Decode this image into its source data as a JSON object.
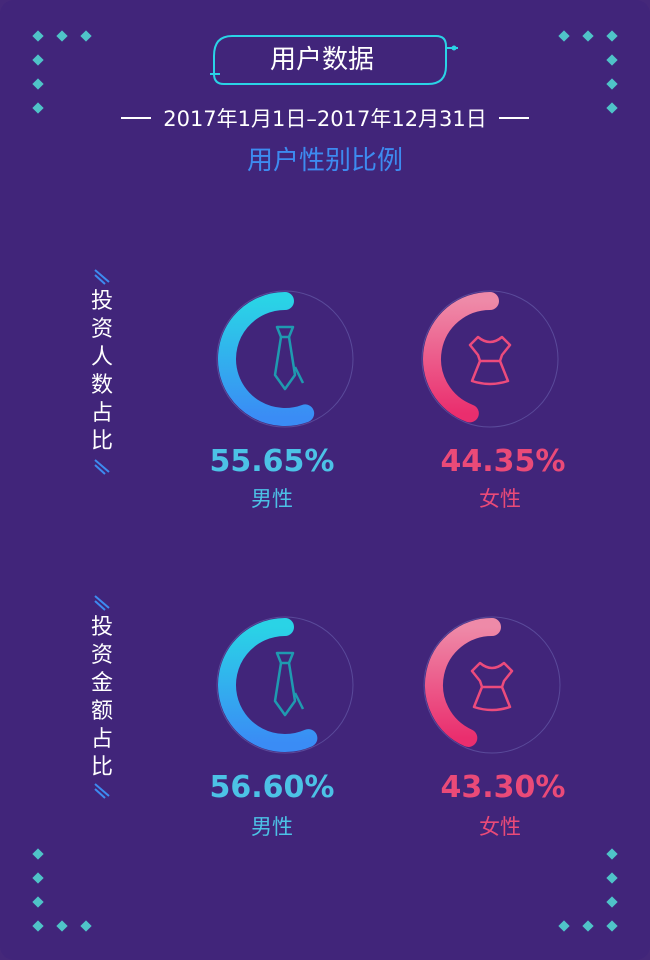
{
  "header": {
    "badge_title": "用户数据",
    "date_range": "2017年1月1日–2017年12月31日",
    "chart_title": "用户性别比例"
  },
  "chart_data": [
    {
      "type": "pie",
      "group_label": "投资人数占比",
      "categories": [
        "男性",
        "女性"
      ],
      "values": [
        55.65,
        44.35
      ],
      "value_labels": [
        "55.65%",
        "44.35%"
      ],
      "unit": "%"
    },
    {
      "type": "pie",
      "group_label": "投资金额占比",
      "categories": [
        "男性",
        "女性"
      ],
      "values": [
        56.6,
        43.3
      ],
      "value_labels": [
        "56.60%",
        "43.30%"
      ],
      "unit": "%"
    }
  ],
  "colors": {
    "background": "#41257a",
    "male_gradient": [
      "#2ad3e6",
      "#3a8cf5"
    ],
    "female_gradient": [
      "#ee8aa8",
      "#ea2e6e"
    ],
    "male_text": "#4cc2e6",
    "female_text": "#ea4a78",
    "accent_dots": "#4fc3c8",
    "title": "#3d8bf0"
  },
  "icons": {
    "male": "necktie-icon",
    "female": "dress-icon"
  }
}
